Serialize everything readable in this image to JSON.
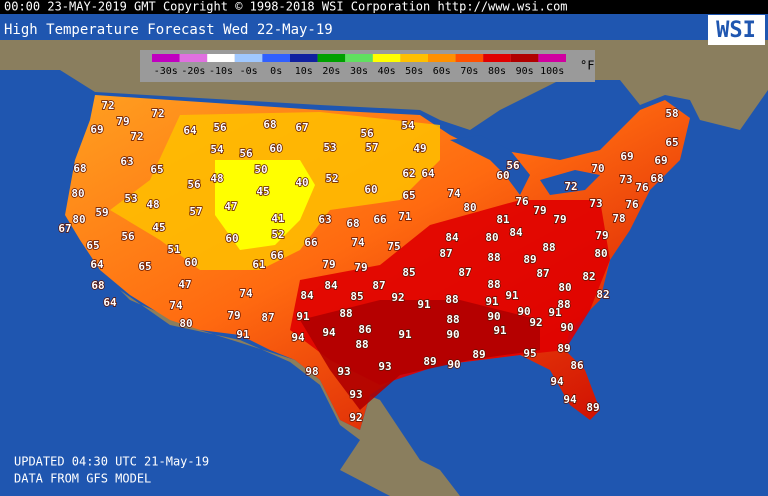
{
  "header": {
    "text": "00:00 23-MAY-2019 GMT Copyright © 1998-2018 WSI Corporation  http://www.wsi.com"
  },
  "title": {
    "text": "High Temperature Forecast  Wed 22-May-19"
  },
  "logo": {
    "text": "WSI"
  },
  "legend": {
    "labels": [
      "-30s",
      "-20s",
      "-10s",
      "-0s",
      "0s",
      "10s",
      "20s",
      "30s",
      "40s",
      "50s",
      "60s",
      "70s",
      "80s",
      "90s",
      "100s"
    ],
    "colors": [
      "#c000c0",
      "#e070e0",
      "#ffffff",
      "#a0c8ff",
      "#3060ff",
      "#1020a0",
      "#00a000",
      "#60e060",
      "#ffff00",
      "#ffc000",
      "#ff9000",
      "#ff5000",
      "#e00000",
      "#b00000",
      "#d000a0"
    ],
    "unit": "°F"
  },
  "temps": [
    72,
    72,
    79,
    69,
    72,
    64,
    56,
    68,
    67,
    56,
    54,
    58,
    65,
    53,
    57,
    49,
    54,
    56,
    60,
    69,
    69,
    63,
    65,
    50,
    56,
    60,
    70,
    68,
    62,
    64,
    48,
    52,
    45,
    56,
    40,
    73,
    68,
    72,
    60,
    65,
    74,
    76,
    80,
    53,
    48,
    57,
    47,
    80,
    76,
    79,
    73,
    76,
    80,
    59,
    45,
    63,
    68,
    66,
    71,
    81,
    79,
    78,
    67,
    56,
    41,
    52,
    60,
    84,
    80,
    84,
    79,
    65,
    51,
    66,
    74,
    75,
    87,
    88,
    80,
    66,
    64,
    65,
    60,
    61,
    79,
    79,
    88,
    89,
    85,
    87,
    87,
    82,
    68,
    47,
    84,
    87,
    88,
    80,
    82,
    74,
    84,
    85,
    92,
    91,
    88,
    91,
    91,
    88,
    64,
    74,
    79,
    87,
    91,
    88,
    88,
    90,
    90,
    91,
    92,
    90,
    80,
    91,
    94,
    94,
    86,
    91,
    90,
    91,
    88,
    89,
    89,
    90,
    89,
    95,
    86,
    98,
    93,
    93,
    94,
    93,
    94,
    89,
    92
  ],
  "footer": {
    "updated": "UPDATED 04:30 UTC 21-May-19",
    "source": "DATA FROM GFS MODEL"
  }
}
